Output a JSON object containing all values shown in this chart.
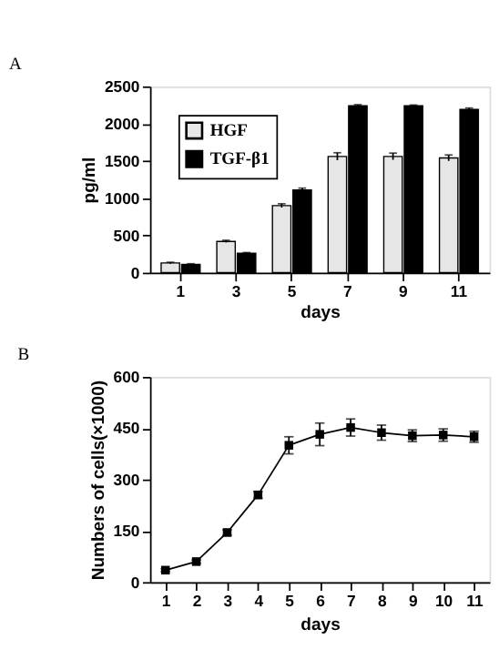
{
  "chart_data": [
    {
      "type": "bar",
      "title": "A",
      "xlabel": "days",
      "ylabel": "pg/ml",
      "categories": [
        "1",
        "3",
        "5",
        "7",
        "9",
        "11"
      ],
      "series": [
        {
          "name": "HGF",
          "color": "#e6e6e6",
          "values": [
            130,
            420,
            900,
            1560,
            1560,
            1540
          ],
          "errors": [
            10,
            15,
            25,
            50,
            45,
            40
          ]
        },
        {
          "name": "TGF-β1",
          "color": "#000000",
          "values": [
            110,
            260,
            1110,
            2240,
            2240,
            2190
          ],
          "errors": [
            10,
            10,
            25,
            15,
            10,
            20
          ]
        }
      ],
      "ylim": [
        0,
        2500
      ],
      "yticks": [
        0,
        500,
        1000,
        1500,
        2000,
        2500
      ],
      "grid": false,
      "legend": "top left"
    },
    {
      "type": "line",
      "title": "B",
      "xlabel": "days",
      "ylabel": "Numbers of cells(×1000)",
      "x": [
        1,
        2,
        3,
        4,
        5,
        6,
        7,
        8,
        9,
        10,
        11
      ],
      "series": [
        {
          "color": "#000000",
          "values": [
            35,
            60,
            145,
            255,
            400,
            432,
            452,
            437,
            428,
            430,
            425
          ],
          "errors": [
            4,
            5,
            8,
            10,
            25,
            33,
            25,
            22,
            17,
            18,
            16
          ]
        }
      ],
      "xlim": [
        0.5,
        11.5
      ],
      "xticks": [
        1,
        2,
        3,
        4,
        5,
        6,
        7,
        8,
        9,
        10,
        11
      ],
      "ylim": [
        0,
        600
      ],
      "yticks": [
        0,
        150,
        300,
        450,
        600
      ],
      "grid": false,
      "marker": "square",
      "line_style": "solid"
    }
  ]
}
